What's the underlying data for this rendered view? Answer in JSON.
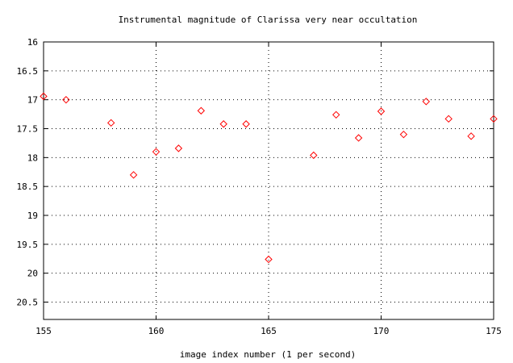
{
  "chart_data": {
    "type": "scatter",
    "title": "Instrumental magnitude of Clarissa very near occultation",
    "xlabel": "image index number (1 per second)",
    "ylabel": "",
    "xlim": [
      155,
      175
    ],
    "ylim": [
      20.8,
      16
    ],
    "y_inverted": true,
    "grid": true,
    "x_ticks": [
      155,
      160,
      165,
      170,
      175
    ],
    "x_tick_labels": [
      "155",
      "160",
      "165",
      "170",
      "175"
    ],
    "y_ticks": [
      16,
      16.5,
      17,
      17.5,
      18,
      18.5,
      19,
      19.5,
      20,
      20.5
    ],
    "y_tick_labels": [
      "16",
      "16.5",
      "17",
      "17.5",
      "18",
      "18.5",
      "19",
      "19.5",
      "20",
      "20.5"
    ],
    "marker": "diamond",
    "marker_color": "#ff0000",
    "series": [
      {
        "x": [
          155,
          156,
          158,
          159,
          160,
          161,
          162,
          163,
          164,
          165,
          167,
          168,
          169,
          170,
          171,
          172,
          173,
          174,
          175
        ],
        "y": [
          16.94,
          17.0,
          17.4,
          18.3,
          17.9,
          17.84,
          17.19,
          17.42,
          17.42,
          19.76,
          17.96,
          17.26,
          17.66,
          17.2,
          17.6,
          17.03,
          17.33,
          17.63,
          17.33
        ]
      }
    ]
  }
}
